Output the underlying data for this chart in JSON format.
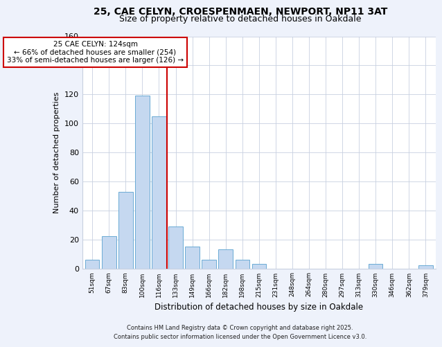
{
  "title_line1": "25, CAE CELYN, CROESPENMAEN, NEWPORT, NP11 3AT",
  "title_line2": "Size of property relative to detached houses in Oakdale",
  "xlabel": "Distribution of detached houses by size in Oakdale",
  "ylabel": "Number of detached properties",
  "bar_labels": [
    "51sqm",
    "67sqm",
    "83sqm",
    "100sqm",
    "116sqm",
    "133sqm",
    "149sqm",
    "166sqm",
    "182sqm",
    "198sqm",
    "215sqm",
    "231sqm",
    "248sqm",
    "264sqm",
    "280sqm",
    "297sqm",
    "313sqm",
    "330sqm",
    "346sqm",
    "362sqm",
    "379sqm"
  ],
  "bar_values": [
    6,
    22,
    53,
    119,
    105,
    29,
    15,
    6,
    13,
    6,
    3,
    0,
    0,
    0,
    0,
    0,
    0,
    3,
    0,
    0,
    2
  ],
  "bar_color": "#c5d8f0",
  "bar_edge_color": "#6aaad4",
  "vline_color": "#cc0000",
  "vline_x_index": 4.5,
  "annotation_text": "25 CAE CELYN: 124sqm\n← 66% of detached houses are smaller (254)\n33% of semi-detached houses are larger (126) →",
  "annotation_box_color": "white",
  "annotation_box_edge": "#cc0000",
  "ylim": [
    0,
    160
  ],
  "yticks": [
    0,
    20,
    40,
    60,
    80,
    100,
    120,
    140,
    160
  ],
  "footer_line1": "Contains HM Land Registry data © Crown copyright and database right 2025.",
  "footer_line2": "Contains public sector information licensed under the Open Government Licence v3.0.",
  "bg_color": "#eef2fb",
  "plot_bg_color": "#ffffff",
  "grid_color": "#c8d0e0"
}
